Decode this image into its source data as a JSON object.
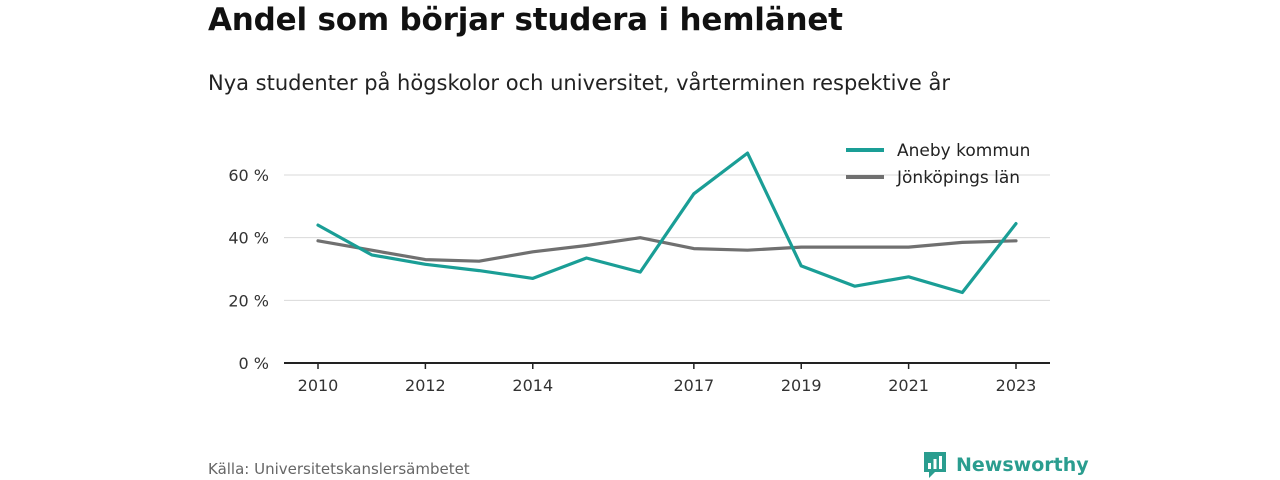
{
  "title": "Andel som börjar studera i hemlänet",
  "subtitle": "Nya studenter på högskolor och universitet, vårterminen respektive år",
  "source": "Källa: Universitetskanslersämbetet",
  "brand": {
    "name": "Newsworthy",
    "icon": "newsworthy-logo-icon",
    "color": "#2a9d8f"
  },
  "chart_data": {
    "type": "line",
    "x": [
      2010,
      2011,
      2012,
      2013,
      2014,
      2015,
      2016,
      2017,
      2018,
      2019,
      2020,
      2021,
      2022,
      2023
    ],
    "x_tick_labels": [
      "2010",
      "2012",
      "2014",
      "2017",
      "2019",
      "2021",
      "2023"
    ],
    "y_ticks": [
      0,
      20,
      40,
      60
    ],
    "y_tick_labels": [
      "0 %",
      "20 %",
      "40 %",
      "60 %"
    ],
    "ylim": [
      0,
      67
    ],
    "grid": true,
    "legend_position": "top-right",
    "series": [
      {
        "name": "Aneby kommun",
        "color": "#1a9e96",
        "values": [
          44,
          34.5,
          31.5,
          29.5,
          27,
          33.5,
          29,
          54,
          67,
          31,
          24.5,
          27.5,
          22.5,
          44.5
        ]
      },
      {
        "name": "Jönköpings län",
        "color": "#707070",
        "values": [
          39,
          36,
          33,
          32.5,
          35.5,
          37.5,
          40,
          36.5,
          36,
          37,
          37,
          37,
          38.5,
          39
        ]
      }
    ]
  }
}
